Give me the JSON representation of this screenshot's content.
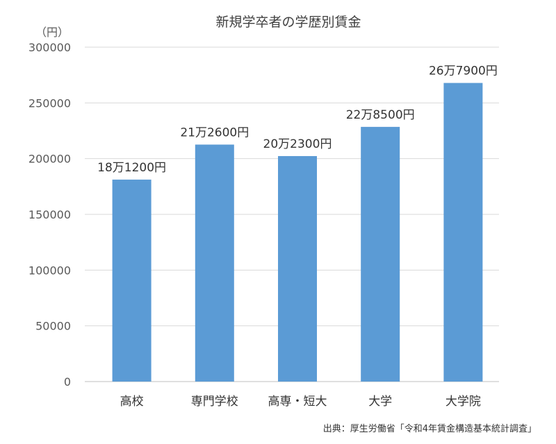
{
  "chart_data": {
    "type": "bar",
    "title": "新規学卒者の学歴別賃金",
    "ylabel": "（円）",
    "categories": [
      "高校",
      "専門学校",
      "高専・短大",
      "大学",
      "大学院"
    ],
    "values": [
      181200,
      212600,
      202300,
      228500,
      267900
    ],
    "data_labels": [
      "18万1200円",
      "21万2600円",
      "20万2300円",
      "22万8500円",
      "26万7900円"
    ],
    "ylim": [
      0,
      300000
    ],
    "yticks": [
      0,
      50000,
      100000,
      150000,
      200000,
      250000,
      300000
    ],
    "grid": true,
    "bar_color": "#5b9bd5",
    "source": "出典：厚生労働省「令和4年賃金構造基本統計調査」"
  }
}
